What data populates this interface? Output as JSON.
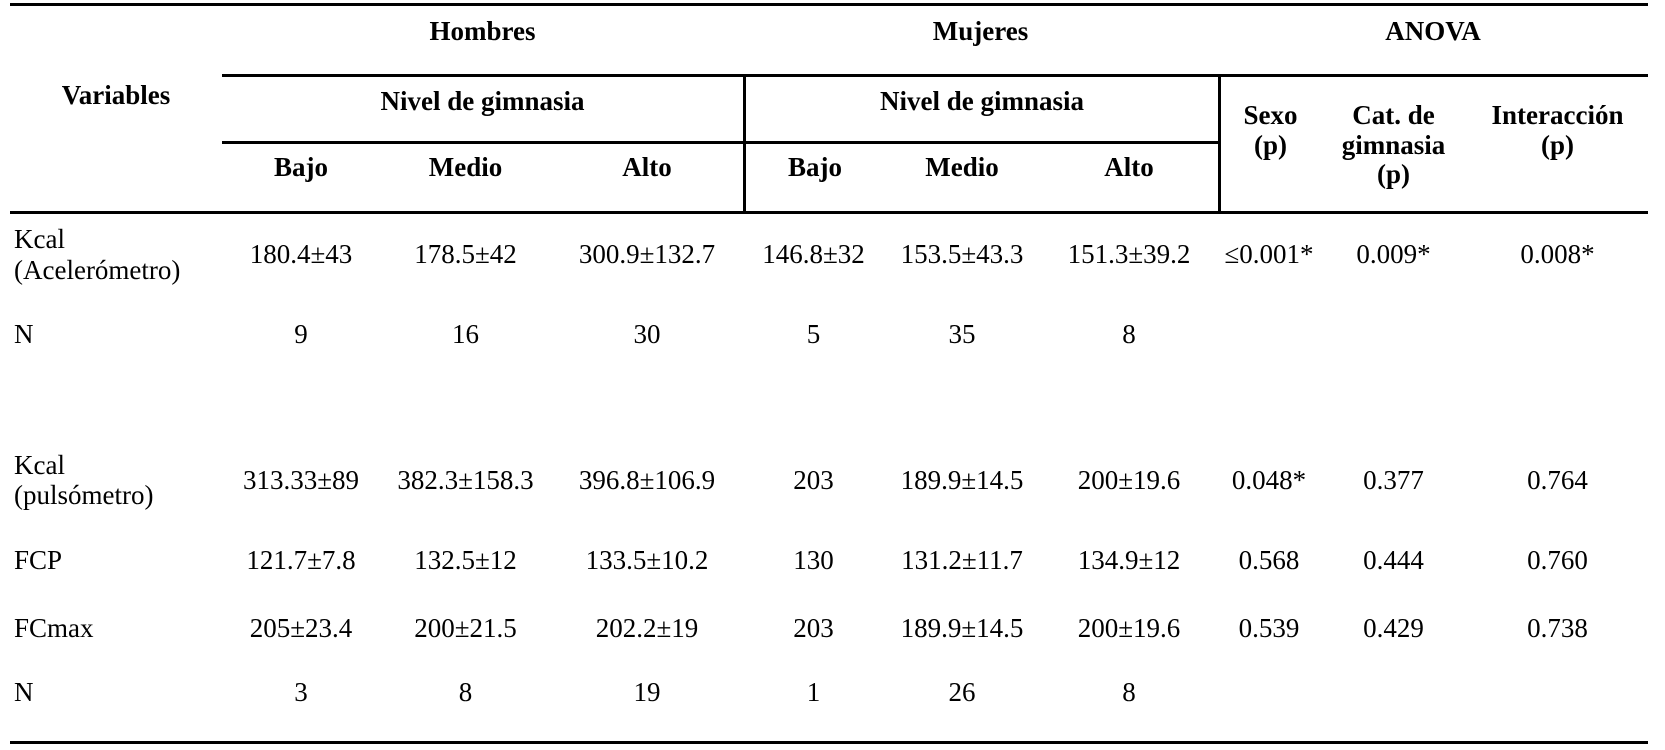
{
  "page": {
    "background": "#ffffff",
    "text_color": "#000000"
  },
  "table": {
    "corner_header": "Variables",
    "group_headers": {
      "hombres": "Hombres",
      "mujeres": "Mujeres",
      "anova": "ANOVA"
    },
    "level_group_header": "Nivel de gimnasia",
    "level_columns": [
      "Bajo",
      "Medio",
      "Alto"
    ],
    "anova_columns": [
      {
        "label": "Sexo",
        "p": "(p)"
      },
      {
        "label": "Cat. de gimnasia",
        "p": "(p)"
      },
      {
        "label": "Interacción",
        "p": "(p)"
      }
    ],
    "rows": [
      {
        "label": "Kcal (Acelerómetro)",
        "hombres": [
          "180.4±43",
          "178.5±42",
          "300.9±132.7"
        ],
        "mujeres": [
          "146.8±32",
          "153.5±43.3",
          "151.3±39.2"
        ],
        "anova": [
          "≤0.001*",
          "0.009*",
          "0.008*"
        ]
      },
      {
        "label": "N",
        "hombres": [
          "9",
          "16",
          "30"
        ],
        "mujeres": [
          "5",
          "35",
          "8"
        ],
        "anova": [
          "",
          "",
          ""
        ]
      },
      {
        "label": "Kcal (pulsómetro)",
        "hombres": [
          "313.33±89",
          "382.3±158.3",
          "396.8±106.9"
        ],
        "mujeres": [
          "203",
          "189.9±14.5",
          "200±19.6"
        ],
        "anova": [
          "0.048*",
          "0.377",
          "0.764"
        ]
      },
      {
        "label": "FCP",
        "hombres": [
          "121.7±7.8",
          "132.5±12",
          "133.5±10.2"
        ],
        "mujeres": [
          "130",
          "131.2±11.7",
          "134.9±12"
        ],
        "anova": [
          "0.568",
          "0.444",
          "0.760"
        ]
      },
      {
        "label": "FCmax",
        "hombres": [
          "205±23.4",
          "200±21.5",
          "202.2±19"
        ],
        "mujeres": [
          "203",
          "189.9±14.5",
          "200±19.6"
        ],
        "anova": [
          "0.539",
          "0.429",
          "0.738"
        ]
      },
      {
        "label": "N",
        "hombres": [
          "3",
          "8",
          "19"
        ],
        "mujeres": [
          "1",
          "26",
          "8"
        ],
        "anova": [
          "",
          "",
          ""
        ]
      }
    ]
  }
}
